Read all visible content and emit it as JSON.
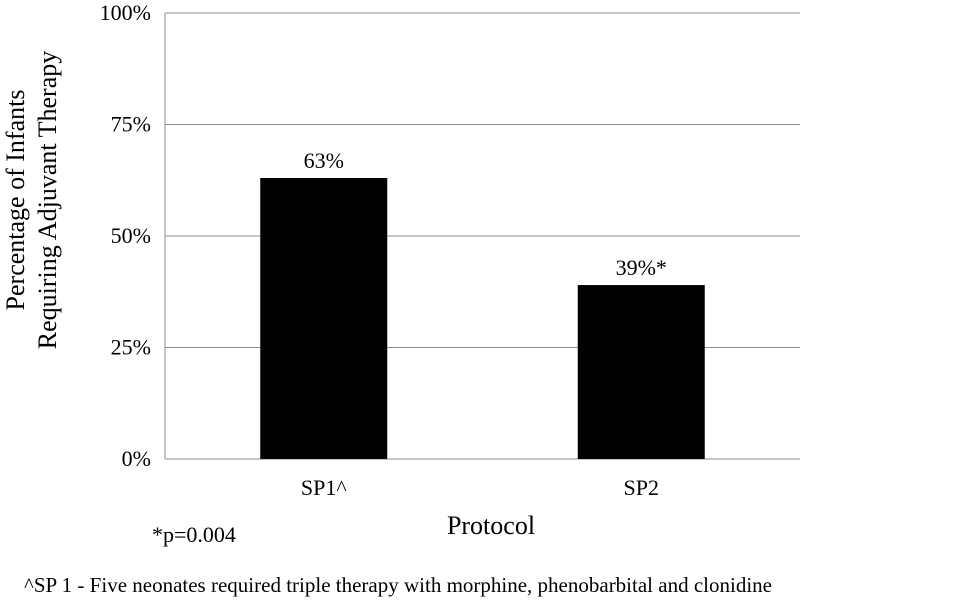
{
  "chart_data": {
    "type": "bar",
    "categories": [
      "SP1^",
      "SP2"
    ],
    "values": [
      63,
      39
    ],
    "data_labels": [
      "63%",
      "39%*"
    ],
    "ylim": [
      0,
      100
    ],
    "yticks": [
      0,
      25,
      50,
      75,
      100
    ],
    "ytick_labels": [
      "0%",
      "25%",
      "50%",
      "75%",
      "100%"
    ],
    "ylabel_line1": "Percentage of Infants",
    "ylabel_line2": "Requiring Adjuvant Therapy",
    "xlabel": "Protocol",
    "grid": true,
    "bar_color": "#000000",
    "grid_color": "#8c8c8c"
  },
  "notes": {
    "pvalue": "*p=0.004",
    "footnote": "^SP 1 -  Five neonates required triple therapy with morphine, phenobarbital and clonidine"
  }
}
